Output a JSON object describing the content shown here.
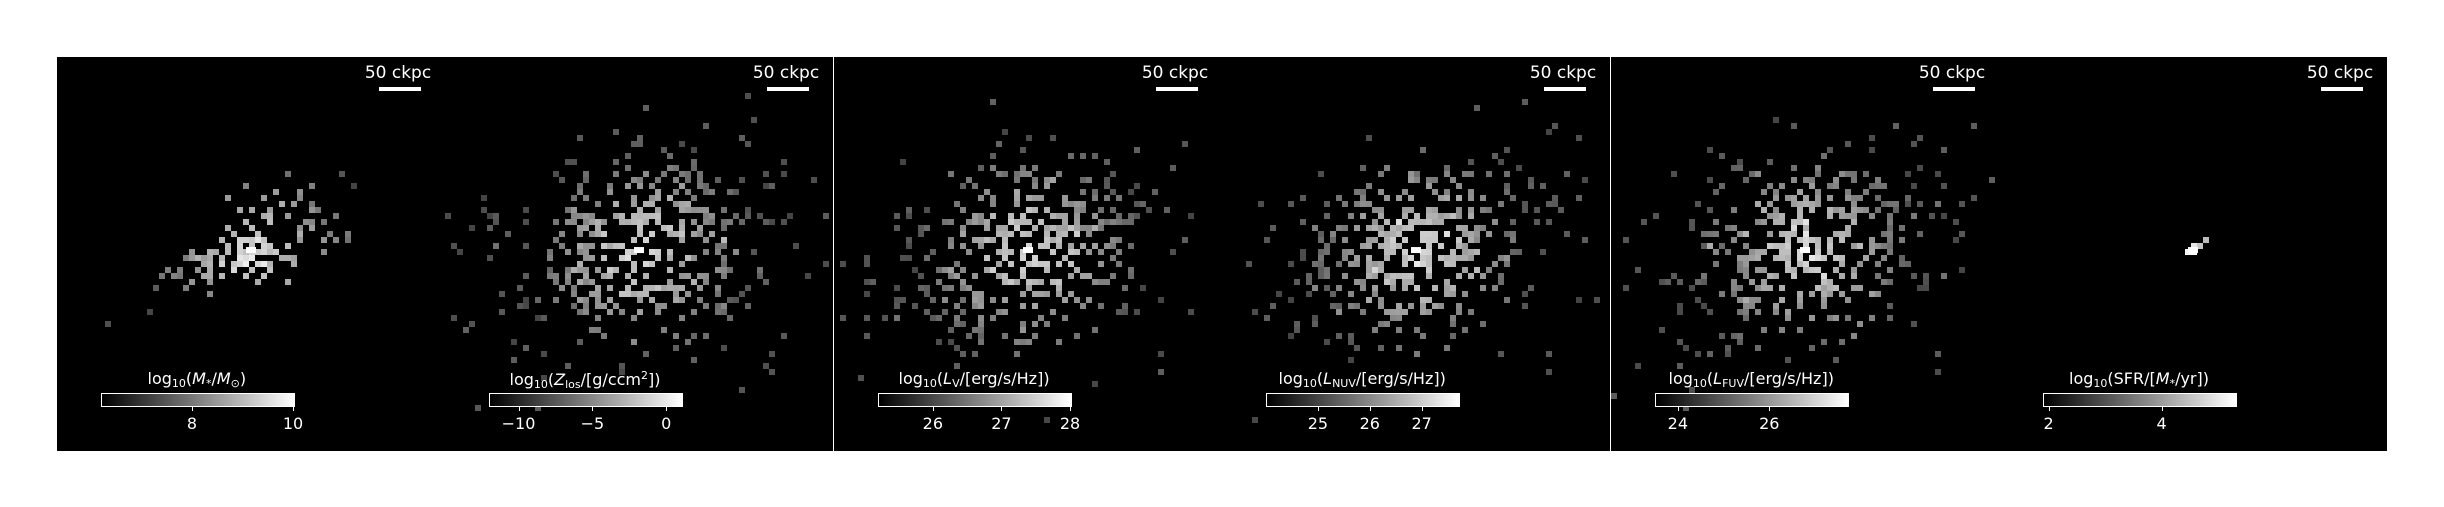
{
  "figure": {
    "panels": [
      {
        "scalebar": "50 ckpc",
        "colorbar": {
          "title_html": "log<sub>10</sub>(<i>M</i><sub>*</sub>/<i>M</i><sub>⊙</sub>)",
          "range": [
            6.2,
            10.0
          ],
          "ticks": [
            {
              "v": 8,
              "label": "8"
            },
            {
              "v": 10,
              "label": "10"
            }
          ]
        },
        "map": {
          "center": [
            0.5,
            0.49
          ],
          "sx": 0.12,
          "sy": 0.05,
          "angle": -25,
          "peak": 1.0,
          "sparse": 0.35,
          "n": 130,
          "extras": []
        }
      },
      {
        "scalebar": "50 ckpc",
        "colorbar": {
          "title_html": "log<sub>10</sub>(<i>Z</i><sub>los</sub>/[g/ccm<sup>2</sup>])",
          "range": [
            -12,
            1
          ],
          "ticks": [
            {
              "v": -10,
              "label": "−10"
            },
            {
              "v": -5,
              "label": "−5"
            },
            {
              "v": 0,
              "label": "0"
            }
          ]
        },
        "map": {
          "center": [
            0.5,
            0.49
          ],
          "sx": 0.2,
          "sy": 0.13,
          "angle": -20,
          "peak": 1.0,
          "sparse": 0.9,
          "n": 420,
          "extras": [
            [
              0.84,
              0.76
            ],
            [
              0.85,
              0.8
            ],
            [
              0.83,
              0.78
            ]
          ]
        }
      },
      {
        "scalebar": "50 ckpc",
        "colorbar": {
          "title_html": "log<sub>10</sub>(<i>L</i><sub>V</sub>/[erg/s/Hz])",
          "range": [
            25.2,
            28.0
          ],
          "ticks": [
            {
              "v": 26,
              "label": "26"
            },
            {
              "v": 27,
              "label": "27"
            },
            {
              "v": 28,
              "label": "28"
            }
          ]
        },
        "map": {
          "center": [
            0.5,
            0.49
          ],
          "sx": 0.19,
          "sy": 0.12,
          "angle": -20,
          "peak": 1.0,
          "sparse": 0.85,
          "n": 400,
          "extras": [
            [
              0.84,
              0.76
            ],
            [
              0.85,
              0.8
            ],
            [
              0.79,
              0.58
            ]
          ]
        }
      },
      {
        "scalebar": "50 ckpc",
        "colorbar": {
          "title_html": "log<sub>10</sub>(<i>L</i><sub>NUV</sub>/[erg/s/Hz])",
          "range": [
            24.0,
            27.7
          ],
          "ticks": [
            {
              "v": 25,
              "label": "25"
            },
            {
              "v": 26,
              "label": "26"
            },
            {
              "v": 27,
              "label": "27"
            }
          ]
        },
        "map": {
          "center": [
            0.5,
            0.49
          ],
          "sx": 0.19,
          "sy": 0.12,
          "angle": -20,
          "peak": 1.0,
          "sparse": 0.85,
          "n": 400,
          "extras": [
            [
              0.84,
              0.76
            ],
            [
              0.85,
              0.8
            ],
            [
              0.79,
              0.58
            ]
          ]
        }
      },
      {
        "scalebar": "50 ckpc",
        "colorbar": {
          "title_html": "log<sub>10</sub>(<i>L</i><sub>FUV</sub>/[erg/s/Hz])",
          "range": [
            23.5,
            27.7
          ],
          "ticks": [
            {
              "v": 24,
              "label": "24"
            },
            {
              "v": 26,
              "label": "26"
            }
          ]
        },
        "map": {
          "center": [
            0.5,
            0.49
          ],
          "sx": 0.19,
          "sy": 0.12,
          "angle": -20,
          "peak": 1.0,
          "sparse": 0.85,
          "n": 400,
          "extras": [
            [
              0.84,
              0.76
            ],
            [
              0.85,
              0.8
            ],
            [
              0.79,
              0.58
            ]
          ]
        }
      },
      {
        "scalebar": "50 ckpc",
        "colorbar": {
          "title_html": "log<sub>10</sub>(SFR/[<i>M</i><sub>*</sub>/yr])",
          "range": [
            1.9,
            5.3
          ],
          "ticks": [
            {
              "v": 2,
              "label": "2"
            },
            {
              "v": 4,
              "label": "4"
            }
          ]
        },
        "map": {
          "center": [
            0.5,
            0.49
          ],
          "sx": 0.015,
          "sy": 0.008,
          "angle": -25,
          "peak": 1.0,
          "sparse": 0.02,
          "n": 12,
          "extras": []
        }
      }
    ]
  }
}
